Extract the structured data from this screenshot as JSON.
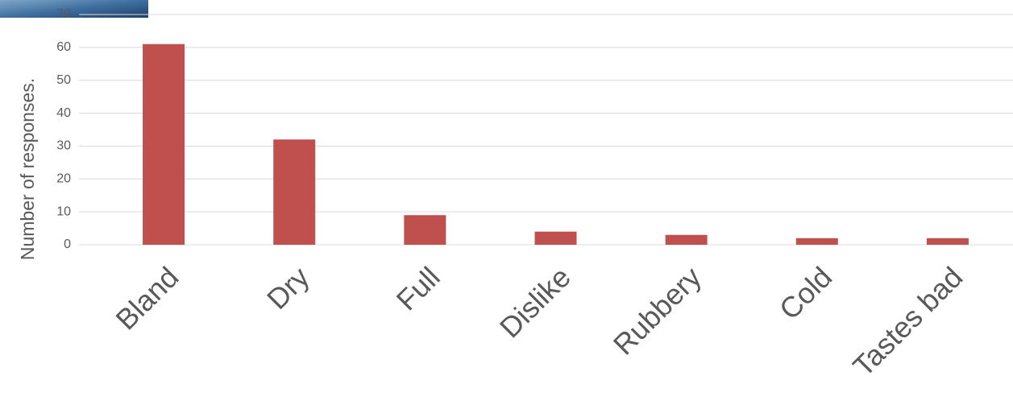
{
  "chart_data": {
    "type": "bar",
    "y_label": "Number of responses.",
    "categories": [
      "Bland",
      "Dry",
      "Full",
      "Dislike",
      "Rubbery",
      "Cold",
      "Tastes bad"
    ],
    "values": [
      61,
      32,
      9,
      4,
      3,
      2,
      2
    ],
    "color": "#c0504d",
    "ylim": [
      0,
      70
    ],
    "yticks": [
      0,
      10,
      20,
      30,
      40,
      50,
      60,
      70
    ],
    "grid": true
  }
}
